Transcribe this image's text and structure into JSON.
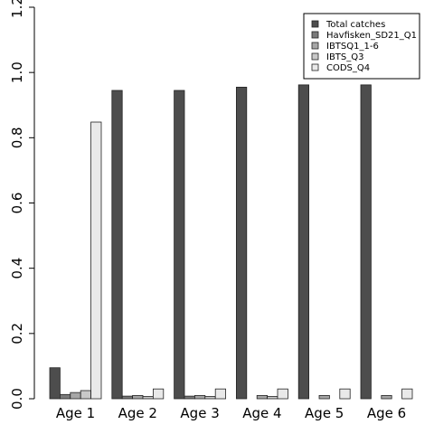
{
  "chart_data": {
    "type": "bar",
    "categories": [
      "Age 1",
      "Age 2",
      "Age 3",
      "Age 4",
      "Age 5",
      "Age 6"
    ],
    "series": [
      {
        "name": "Total catches",
        "color": "#4d4d4d",
        "values": [
          0.095,
          0.945,
          0.945,
          0.955,
          0.962,
          0.962
        ]
      },
      {
        "name": "Havfisken_SD21_Q1",
        "color": "#7a7a7a",
        "values": [
          0.013,
          0.008,
          0.008,
          0.0,
          0.0,
          0.0
        ]
      },
      {
        "name": "IBTSQ1_1-6",
        "color": "#a6a6a6",
        "values": [
          0.019,
          0.01,
          0.01,
          0.01,
          0.01,
          0.01
        ]
      },
      {
        "name": "IBTS_Q3",
        "color": "#c8c8c8",
        "values": [
          0.025,
          0.007,
          0.007,
          0.007,
          0.0,
          0.0
        ]
      },
      {
        "name": "CODS_Q4",
        "color": "#e9e9e9",
        "values": [
          0.848,
          0.03,
          0.03,
          0.03,
          0.03,
          0.03
        ]
      }
    ],
    "yticks": [
      "0.0",
      "0.2",
      "0.4",
      "0.6",
      "0.8",
      "1.0",
      "1.2"
    ],
    "ylim": [
      0,
      1.2
    ],
    "legend_position": "top-right",
    "grid": false
  }
}
